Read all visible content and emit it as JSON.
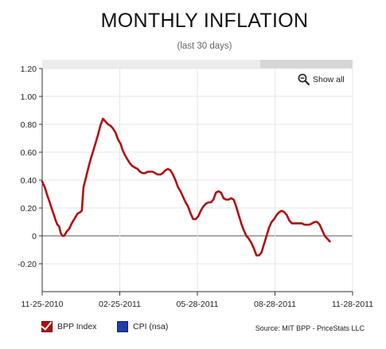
{
  "header": {
    "title": "MONTHLY INFLATION",
    "subtitle": "(last 30 days)"
  },
  "controls": {
    "show_all_label": "Show all",
    "show_all_icon": "zoom-out-icon"
  },
  "legend": {
    "items": [
      {
        "label": "BPP Index",
        "color": "#b01010",
        "checked": true
      },
      {
        "label": "CPI (nsa)",
        "color": "#1f3ea8",
        "checked": false
      }
    ]
  },
  "footer": {
    "source": "Source: MIT BPP - PriceStats LLC"
  },
  "chart_data": {
    "type": "line",
    "title": "MONTHLY INFLATION",
    "subtitle": "(last 30 days)",
    "xlabel": "",
    "ylabel": "",
    "x_start": "2010-11-25",
    "x_end": "2011-11-28",
    "x_ticks": [
      "11-25-2010",
      "02-25-2011",
      "05-28-2011",
      "08-28-2011",
      "11-28-2011"
    ],
    "y_ticks": [
      "1.20",
      "1.00",
      "0.80",
      "0.60",
      "0.40",
      "0.20",
      "0",
      "-0.20"
    ],
    "ylim": [
      -0.4,
      1.2
    ],
    "grid": true,
    "legend_position": "bottom-left",
    "series": [
      {
        "name": "BPP Index",
        "color": "#b01010",
        "points": [
          [
            "2010-11-25",
            0.39
          ],
          [
            "2010-11-28",
            0.35
          ],
          [
            "2010-12-01",
            0.29
          ],
          [
            "2010-12-04",
            0.24
          ],
          [
            "2010-12-06",
            0.2
          ],
          [
            "2010-12-09",
            0.15
          ],
          [
            "2010-12-11",
            0.11
          ],
          [
            "2010-12-13",
            0.08
          ],
          [
            "2010-12-15",
            0.07
          ],
          [
            "2010-12-17",
            0.02
          ],
          [
            "2010-12-19",
            0.0
          ],
          [
            "2010-12-21",
            0.0
          ],
          [
            "2010-12-24",
            0.03
          ],
          [
            "2010-12-27",
            0.05
          ],
          [
            "2010-12-30",
            0.09
          ],
          [
            "2011-01-03",
            0.13
          ],
          [
            "2011-01-06",
            0.16
          ],
          [
            "2011-01-09",
            0.17
          ],
          [
            "2011-01-11",
            0.18
          ],
          [
            "2011-01-13",
            0.35
          ],
          [
            "2011-01-16",
            0.42
          ],
          [
            "2011-01-18",
            0.47
          ],
          [
            "2011-01-21",
            0.54
          ],
          [
            "2011-01-24",
            0.6
          ],
          [
            "2011-01-27",
            0.66
          ],
          [
            "2011-01-30",
            0.72
          ],
          [
            "2011-02-02",
            0.79
          ],
          [
            "2011-02-05",
            0.84
          ],
          [
            "2011-02-08",
            0.82
          ],
          [
            "2011-02-11",
            0.8
          ],
          [
            "2011-02-14",
            0.79
          ],
          [
            "2011-02-17",
            0.77
          ],
          [
            "2011-02-20",
            0.74
          ],
          [
            "2011-02-23",
            0.69
          ],
          [
            "2011-02-26",
            0.66
          ],
          [
            "2011-02-28",
            0.62
          ],
          [
            "2011-03-03",
            0.58
          ],
          [
            "2011-03-06",
            0.55
          ],
          [
            "2011-03-09",
            0.52
          ],
          [
            "2011-03-12",
            0.5
          ],
          [
            "2011-03-15",
            0.49
          ],
          [
            "2011-03-18",
            0.48
          ],
          [
            "2011-03-21",
            0.46
          ],
          [
            "2011-03-24",
            0.45
          ],
          [
            "2011-03-27",
            0.45
          ],
          [
            "2011-03-30",
            0.46
          ],
          [
            "2011-04-02",
            0.46
          ],
          [
            "2011-04-05",
            0.46
          ],
          [
            "2011-04-08",
            0.45
          ],
          [
            "2011-04-11",
            0.44
          ],
          [
            "2011-04-14",
            0.44
          ],
          [
            "2011-04-17",
            0.45
          ],
          [
            "2011-04-20",
            0.47
          ],
          [
            "2011-04-23",
            0.48
          ],
          [
            "2011-04-26",
            0.47
          ],
          [
            "2011-04-29",
            0.44
          ],
          [
            "2011-05-02",
            0.4
          ],
          [
            "2011-05-05",
            0.35
          ],
          [
            "2011-05-08",
            0.32
          ],
          [
            "2011-05-11",
            0.28
          ],
          [
            "2011-05-14",
            0.24
          ],
          [
            "2011-05-17",
            0.21
          ],
          [
            "2011-05-20",
            0.16
          ],
          [
            "2011-05-23",
            0.12
          ],
          [
            "2011-05-26",
            0.12
          ],
          [
            "2011-05-29",
            0.14
          ],
          [
            "2011-06-01",
            0.18
          ],
          [
            "2011-06-04",
            0.21
          ],
          [
            "2011-06-07",
            0.23
          ],
          [
            "2011-06-10",
            0.24
          ],
          [
            "2011-06-13",
            0.24
          ],
          [
            "2011-06-16",
            0.26
          ],
          [
            "2011-06-19",
            0.31
          ],
          [
            "2011-06-22",
            0.32
          ],
          [
            "2011-06-25",
            0.31
          ],
          [
            "2011-06-28",
            0.27
          ],
          [
            "2011-07-01",
            0.26
          ],
          [
            "2011-07-04",
            0.26
          ],
          [
            "2011-07-07",
            0.27
          ],
          [
            "2011-07-10",
            0.26
          ],
          [
            "2011-07-13",
            0.21
          ],
          [
            "2011-07-16",
            0.15
          ],
          [
            "2011-07-19",
            0.09
          ],
          [
            "2011-07-22",
            0.04
          ],
          [
            "2011-07-25",
            0.0
          ],
          [
            "2011-07-28",
            -0.02
          ],
          [
            "2011-07-31",
            -0.05
          ],
          [
            "2011-08-03",
            -0.09
          ],
          [
            "2011-08-06",
            -0.14
          ],
          [
            "2011-08-09",
            -0.14
          ],
          [
            "2011-08-12",
            -0.12
          ],
          [
            "2011-08-15",
            -0.06
          ],
          [
            "2011-08-18",
            0.0
          ],
          [
            "2011-08-21",
            0.06
          ],
          [
            "2011-08-24",
            0.1
          ],
          [
            "2011-08-27",
            0.12
          ],
          [
            "2011-08-30",
            0.15
          ],
          [
            "2011-09-02",
            0.17
          ],
          [
            "2011-09-05",
            0.18
          ],
          [
            "2011-09-08",
            0.17
          ],
          [
            "2011-09-11",
            0.15
          ],
          [
            "2011-09-14",
            0.11
          ],
          [
            "2011-09-17",
            0.09
          ],
          [
            "2011-09-20",
            0.09
          ],
          [
            "2011-09-23",
            0.09
          ],
          [
            "2011-09-26",
            0.09
          ],
          [
            "2011-09-29",
            0.09
          ],
          [
            "2011-10-02",
            0.08
          ],
          [
            "2011-10-05",
            0.08
          ],
          [
            "2011-10-08",
            0.08
          ],
          [
            "2011-10-11",
            0.09
          ],
          [
            "2011-10-14",
            0.1
          ],
          [
            "2011-10-17",
            0.1
          ],
          [
            "2011-10-20",
            0.08
          ],
          [
            "2011-10-23",
            0.04
          ],
          [
            "2011-10-26",
            0.0
          ],
          [
            "2011-10-29",
            -0.02
          ],
          [
            "2011-11-01",
            -0.04
          ]
        ]
      }
    ]
  }
}
